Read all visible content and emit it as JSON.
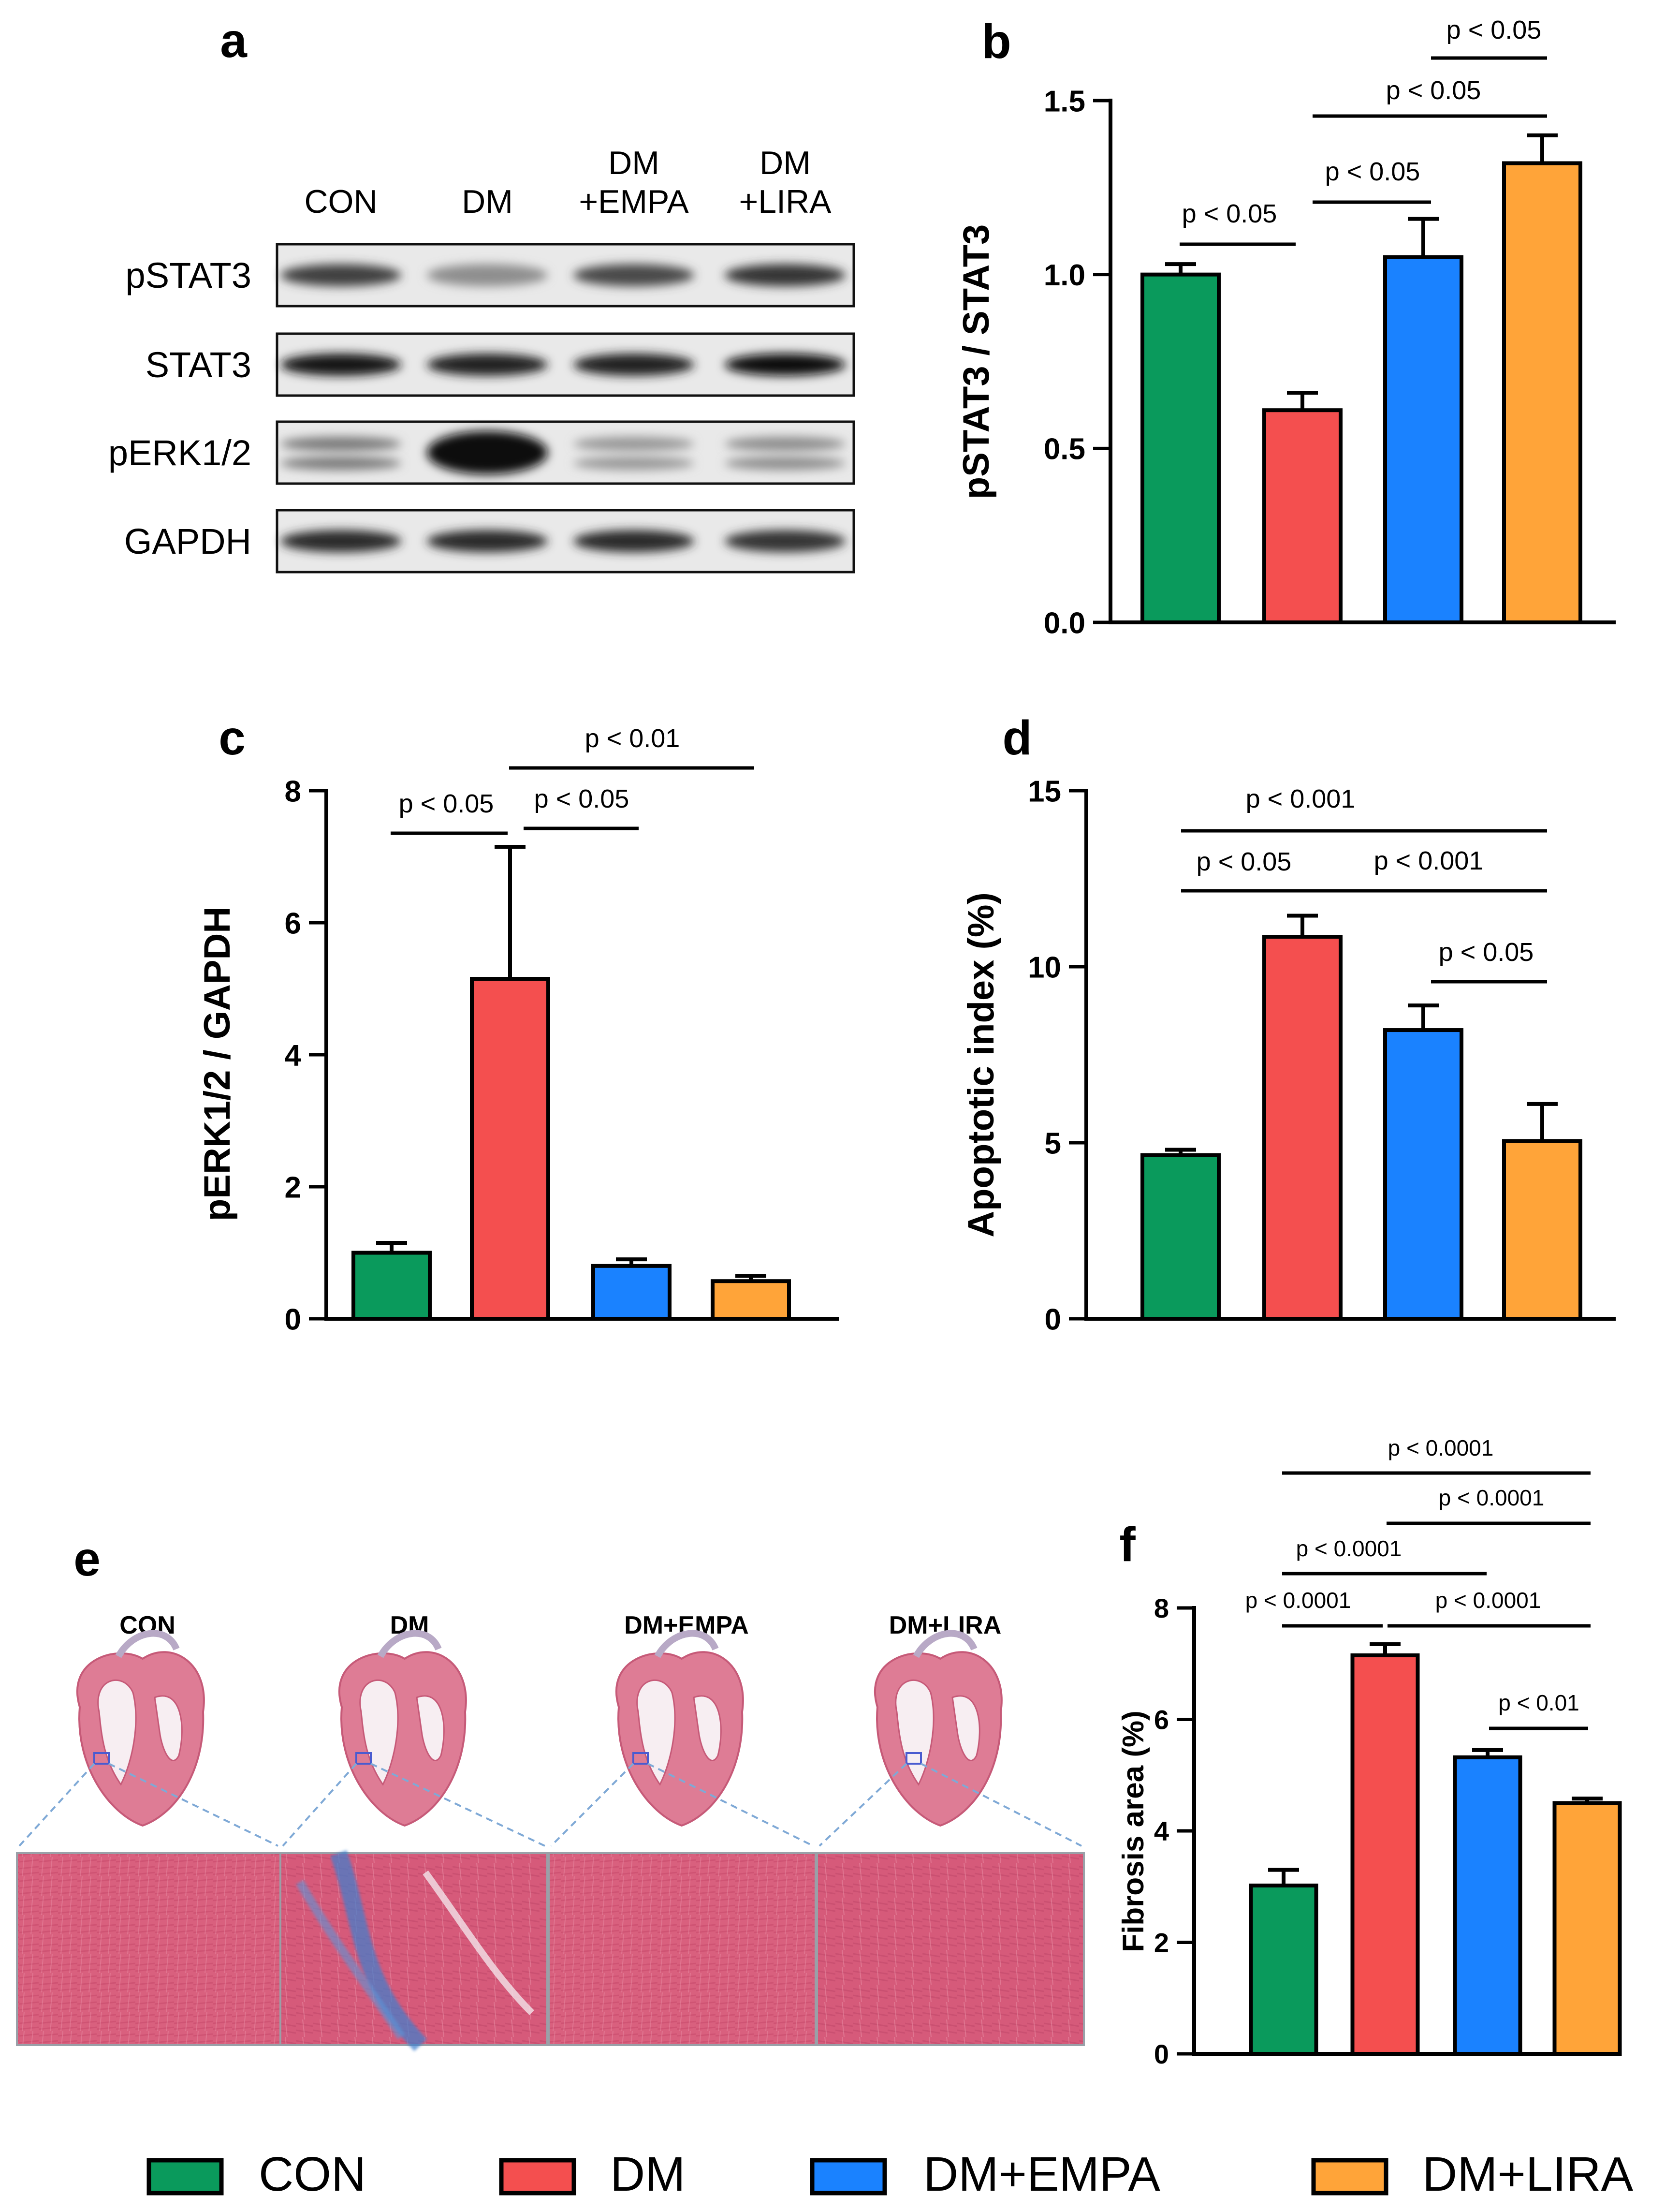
{
  "groups": [
    "CON",
    "DM",
    "DM+EMPA",
    "DM+LIRA"
  ],
  "colors": {
    "CON": "#0a9a5c",
    "DM": "#f44f4f",
    "DM+EMPA": "#1a82ff",
    "DM+LIRA": "#ffa439"
  },
  "legend": {
    "labels": [
      "CON",
      "DM",
      "DM+EMPA",
      "DM+LIRA"
    ]
  },
  "panel_a": {
    "letter": "a",
    "lanes": [
      [
        "CON"
      ],
      [
        "DM"
      ],
      [
        "DM",
        "+EMPA"
      ],
      [
        "DM",
        "+LIRA"
      ]
    ],
    "rows": [
      {
        "label": "pSTAT3",
        "intensity": [
          0.75,
          0.35,
          0.7,
          0.8
        ]
      },
      {
        "label": "STAT3",
        "intensity": [
          0.95,
          0.9,
          0.9,
          1.0
        ]
      },
      {
        "label": "pERK1/2",
        "intensity": [
          0.45,
          1.0,
          0.3,
          0.35
        ]
      },
      {
        "label": "GAPDH",
        "intensity": [
          0.85,
          0.85,
          0.85,
          0.8
        ]
      }
    ]
  },
  "panel_e": {
    "letter": "e",
    "labels": [
      "CON",
      "DM",
      "DM+EMPA",
      "DM+LIRA"
    ]
  },
  "chart_data": [
    {
      "panel": "b",
      "type": "bar",
      "categories": [
        "CON",
        "DM",
        "DM+EMPA",
        "DM+LIRA"
      ],
      "values": [
        1.0,
        0.61,
        1.05,
        1.32
      ],
      "errors": [
        0.03,
        0.05,
        0.11,
        0.08
      ],
      "ylabel": "pSTAT3 / STAT3",
      "ylim": [
        0,
        1.5
      ],
      "yticks": [
        "0.0",
        "0.5",
        "1.0",
        "1.5"
      ],
      "annotations": [
        {
          "text": "p < 0.05",
          "from": 0,
          "to": 1
        },
        {
          "text": "p < 0.05",
          "from": 1,
          "to": 2
        },
        {
          "text": "p < 0.05",
          "from": 1,
          "to": 3
        },
        {
          "text": "p < 0.05",
          "from": 2,
          "to": 3
        }
      ]
    },
    {
      "panel": "c",
      "type": "bar",
      "categories": [
        "CON",
        "DM",
        "DM+EMPA",
        "DM+LIRA"
      ],
      "values": [
        1.0,
        5.15,
        0.8,
        0.57
      ],
      "errors": [
        0.15,
        2.0,
        0.1,
        0.08
      ],
      "ylabel": "pERK1/2 / GAPDH",
      "ylim": [
        0,
        8
      ],
      "yticks": [
        "0",
        "2",
        "4",
        "6",
        "8"
      ],
      "annotations": [
        {
          "text": "p < 0.05",
          "from": 0,
          "to": 1
        },
        {
          "text": "p < 0.05",
          "from": 1,
          "to": 2
        },
        {
          "text": "p < 0.01",
          "from": 1,
          "to": 3
        }
      ]
    },
    {
      "panel": "d",
      "type": "bar",
      "categories": [
        "CON",
        "DM",
        "DM+EMPA",
        "DM+LIRA"
      ],
      "values": [
        4.65,
        10.85,
        8.2,
        5.05
      ],
      "errors": [
        0.15,
        0.6,
        0.7,
        1.05
      ],
      "ylabel": "Apoptotic index (%)",
      "ylim": [
        0,
        15
      ],
      "yticks": [
        "0",
        "5",
        "10",
        "15"
      ],
      "annotations": [
        {
          "text": "p < 0.05",
          "from": 0,
          "to": 2
        },
        {
          "text": "p < 0.001",
          "from": 0,
          "to": 1
        },
        {
          "text": "p < 0.001",
          "from": 1,
          "to": 3
        },
        {
          "text": "p < 0.05",
          "from": 2,
          "to": 3
        }
      ]
    },
    {
      "panel": "f",
      "type": "bar",
      "categories": [
        "CON",
        "DM",
        "DM+EMPA",
        "DM+LIRA"
      ],
      "values": [
        3.02,
        7.15,
        5.32,
        4.5
      ],
      "errors": [
        0.28,
        0.2,
        0.13,
        0.08
      ],
      "ylabel": "Fibrosis area (%)",
      "ylim": [
        0,
        8
      ],
      "yticks": [
        "0",
        "2",
        "4",
        "6",
        "8"
      ],
      "annotations": [
        {
          "text": "p < 0.0001",
          "from": 1,
          "to": 3
        },
        {
          "text": "p < 0.0001",
          "from": 2,
          "to": 3
        },
        {
          "text": "p < 0.0001",
          "from": 1,
          "to": 2
        },
        {
          "text": "p < 0.0001",
          "from": 0,
          "to": 1
        },
        {
          "text": "p < 0.0001",
          "from": 1,
          "to": 3
        },
        {
          "text": "p < 0.01",
          "from": 2,
          "to": 3
        }
      ]
    }
  ]
}
